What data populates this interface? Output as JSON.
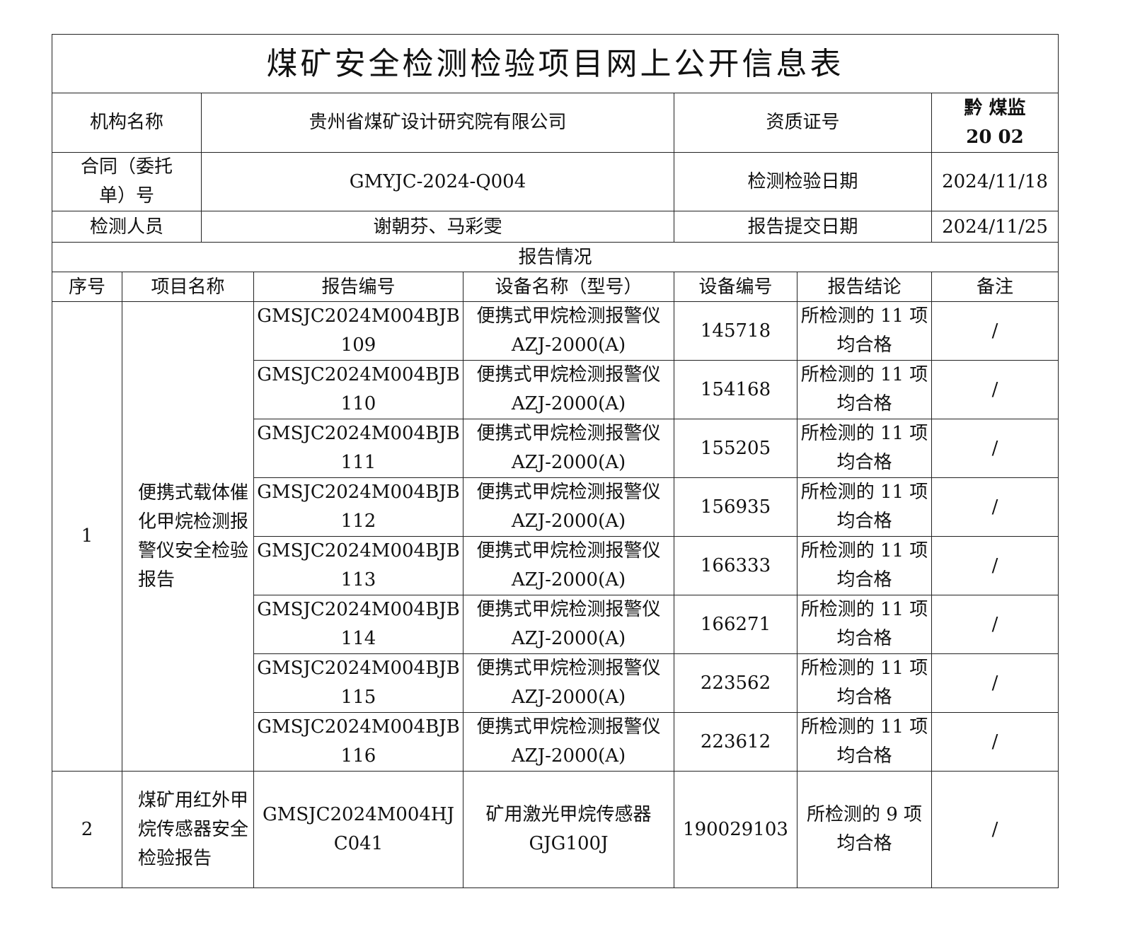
{
  "title": "煤矿安全检测检验项目网上公开信息表",
  "info": {
    "org_label": "机构名称",
    "org_value": "贵州省煤矿设计研究院有限公司",
    "cert_label": "资质证号",
    "cert_value_line1": "黔 煤监",
    "cert_value_line2": "20 02",
    "contract_label_line1": "合同（委托",
    "contract_label_line2": "单）号",
    "contract_value": "GMYJC-2024-Q004",
    "test_date_label": "检测检验日期",
    "test_date_value": "2024/11/18",
    "staff_label": "检测人员",
    "staff_value": "谢朝芬、马彩雯",
    "submit_date_label": "报告提交日期",
    "submit_date_value": "2024/11/25"
  },
  "section_title": "报告情况",
  "columns": [
    "序号",
    "项目名称",
    "报告编号",
    "设备名称（型号）",
    "设备编号",
    "报告结论",
    "备注"
  ],
  "groups": [
    {
      "no": "1",
      "project": "便携式载体催化甲烷检测报警仪安全检验报告",
      "rows": [
        {
          "report": "GMSJC2024M004BJB109",
          "device": "便携式甲烷检测报警仪 AZJ-2000(A)",
          "serial": "145718",
          "conclusion": "所检测的 11 项均合格",
          "note": "/"
        },
        {
          "report": "GMSJC2024M004BJB110",
          "device": "便携式甲烷检测报警仪 AZJ-2000(A)",
          "serial": "154168",
          "conclusion": "所检测的 11 项均合格",
          "note": "/"
        },
        {
          "report": "GMSJC2024M004BJB111",
          "device": "便携式甲烷检测报警仪 AZJ-2000(A)",
          "serial": "155205",
          "conclusion": "所检测的 11 项均合格",
          "note": "/"
        },
        {
          "report": "GMSJC2024M004BJB112",
          "device": "便携式甲烷检测报警仪 AZJ-2000(A)",
          "serial": "156935",
          "conclusion": "所检测的 11 项均合格",
          "note": "/"
        },
        {
          "report": "GMSJC2024M004BJB113",
          "device": "便携式甲烷检测报警仪 AZJ-2000(A)",
          "serial": "166333",
          "conclusion": "所检测的 11 项均合格",
          "note": "/"
        },
        {
          "report": "GMSJC2024M004BJB114",
          "device": "便携式甲烷检测报警仪 AZJ-2000(A)",
          "serial": "166271",
          "conclusion": "所检测的 11 项均合格",
          "note": "/"
        },
        {
          "report": "GMSJC2024M004BJB115",
          "device": "便携式甲烷检测报警仪 AZJ-2000(A)",
          "serial": "223562",
          "conclusion": "所检测的 11 项均合格",
          "note": "/"
        },
        {
          "report": "GMSJC2024M004BJB116",
          "device": "便携式甲烷检测报警仪 AZJ-2000(A)",
          "serial": "223612",
          "conclusion": "所检测的 11 项均合格",
          "note": "/"
        }
      ]
    },
    {
      "no": "2",
      "project": "煤矿用红外甲烷传感器安全检验报告",
      "rows": [
        {
          "report": "GMSJC2024M004HJC041",
          "device": "矿用激光甲烷传感器 GJG100J",
          "serial": "190029103",
          "conclusion": "所检测的 9 项均合格",
          "note": "/"
        }
      ]
    }
  ]
}
